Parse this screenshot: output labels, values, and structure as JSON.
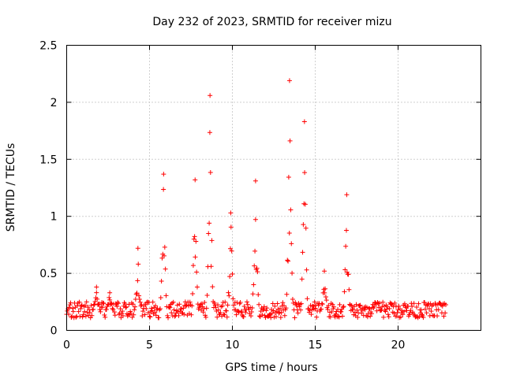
{
  "chart_data": {
    "type": "scatter",
    "title": "Day 232 of 2023, SRMTID for receiver mizu",
    "xlabel": "GPS time / hours",
    "ylabel": "SRMTID / TECUs",
    "xlim": [
      0,
      25
    ],
    "ylim": [
      0,
      2.5
    ],
    "xticks": [
      "0",
      "5",
      "10",
      "15",
      "20"
    ],
    "yticks": [
      "0",
      "0.5",
      "1",
      "1.5",
      "2",
      "2.5"
    ],
    "grid": true,
    "marker": "+",
    "color": "#ff0000",
    "baseline_level": 0.18,
    "peaks": [
      {
        "t": 1.8,
        "peak": 0.38
      },
      {
        "t": 2.6,
        "peak": 0.33
      },
      {
        "t": 4.3,
        "peak": 0.72
      },
      {
        "t": 5.85,
        "peak": 1.37
      },
      {
        "t": 7.75,
        "peak": 1.32
      },
      {
        "t": 8.65,
        "peak": 2.06
      },
      {
        "t": 9.9,
        "peak": 1.03
      },
      {
        "t": 11.4,
        "peak": 1.31
      },
      {
        "t": 13.45,
        "peak": 2.19
      },
      {
        "t": 14.35,
        "peak": 1.83
      },
      {
        "t": 15.55,
        "peak": 0.52
      },
      {
        "t": 16.9,
        "peak": 1.19
      }
    ],
    "x_range_data": [
      0,
      22.9
    ]
  }
}
